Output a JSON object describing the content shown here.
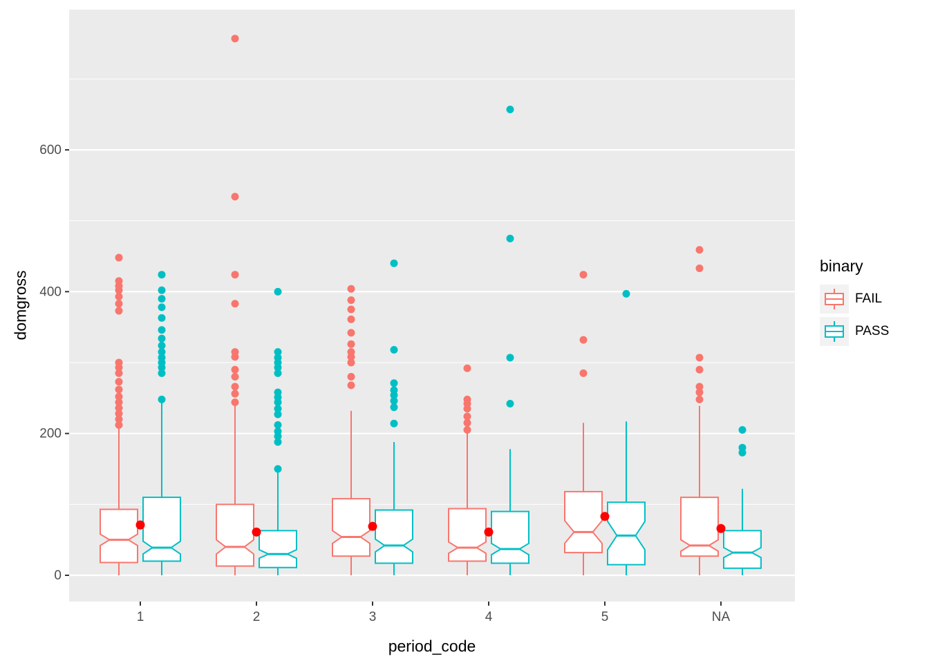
{
  "chart_data": {
    "type": "boxplot",
    "title": "",
    "xlabel": "period_code",
    "ylabel": "domgross",
    "categories": [
      "1",
      "2",
      "3",
      "4",
      "5",
      "NA"
    ],
    "y_major_ticks": [
      0,
      200,
      400,
      600
    ],
    "y_minor_ticks": [
      100,
      300,
      500,
      700
    ],
    "ylim": [
      -37,
      798
    ],
    "grid": true,
    "legend": {
      "title": "binary",
      "position": "right",
      "entries": [
        {
          "label": "FAIL",
          "color": "#F8766D"
        },
        {
          "label": "PASS",
          "color": "#00BFC4"
        }
      ]
    },
    "colors": {
      "FAIL": "#F8766D",
      "PASS": "#00BFC4",
      "mean": "#FF0000",
      "panel_bg": "#EBEBEB",
      "grid": "#FFFFFF",
      "axis_text": "#4D4D4D",
      "axis_title": "#000000",
      "tick_mark": "#333333"
    },
    "means": {
      "x": [
        "1",
        "2",
        "3",
        "4",
        "5",
        "NA"
      ],
      "values": [
        71,
        61,
        69,
        61,
        83,
        66
      ]
    },
    "series": [
      {
        "name": "FAIL",
        "boxes": [
          {
            "category": "1",
            "whisker_low": 0,
            "q1": 18,
            "notch_low": 42,
            "median": 50,
            "notch_high": 58,
            "q3": 93,
            "whisker_high": 208,
            "outliers": [
              212,
              220,
              228,
              236,
              244,
              252,
              262,
              273,
              285,
              293,
              300,
              373,
              383,
              393,
              402,
              408,
              415,
              448
            ]
          },
          {
            "category": "2",
            "whisker_low": 0,
            "q1": 13,
            "notch_low": 30,
            "median": 40,
            "notch_high": 50,
            "q3": 100,
            "whisker_high": 239,
            "outliers": [
              244,
              256,
              266,
              280,
              290,
              308,
              315,
              383,
              424,
              534,
              757
            ]
          },
          {
            "category": "3",
            "whisker_low": 0,
            "q1": 27,
            "notch_low": 45,
            "median": 54,
            "notch_high": 63,
            "q3": 108,
            "whisker_high": 232,
            "outliers": [
              268,
              280,
              300,
              308,
              315,
              326,
              342,
              361,
              375,
              388,
              404
            ]
          },
          {
            "category": "4",
            "whisker_low": 0,
            "q1": 20,
            "notch_low": 31,
            "median": 39,
            "notch_high": 47,
            "q3": 94,
            "whisker_high": 200,
            "outliers": [
              205,
              215,
              224,
              235,
              242,
              248,
              292
            ]
          },
          {
            "category": "5",
            "whisker_low": 0,
            "q1": 32,
            "notch_low": 45,
            "median": 61,
            "notch_high": 77,
            "q3": 118,
            "whisker_high": 215,
            "outliers": [
              285,
              332,
              424
            ]
          },
          {
            "category": "NA",
            "whisker_low": 0,
            "q1": 27,
            "notch_low": 34,
            "median": 42,
            "notch_high": 50,
            "q3": 110,
            "whisker_high": 239,
            "outliers": [
              248,
              258,
              266,
              290,
              307,
              433,
              459
            ]
          }
        ]
      },
      {
        "name": "PASS",
        "boxes": [
          {
            "category": "1",
            "whisker_low": 0,
            "q1": 20,
            "notch_low": 30,
            "median": 39,
            "notch_high": 48,
            "q3": 110,
            "whisker_high": 244,
            "outliers": [
              248,
              285,
              293,
              300,
              307,
              315,
              324,
              334,
              346,
              363,
              378,
              390,
              402,
              424
            ]
          },
          {
            "category": "2",
            "whisker_low": 0,
            "q1": 11,
            "notch_low": 24,
            "median": 30,
            "notch_high": 36,
            "q3": 63,
            "whisker_high": 146,
            "outliers": [
              150,
              188,
              196,
              203,
              212,
              227,
              235,
              244,
              251,
              258,
              285,
              293,
              300,
              307,
              315,
              400
            ]
          },
          {
            "category": "3",
            "whisker_low": 0,
            "q1": 17,
            "notch_low": 33,
            "median": 42,
            "notch_high": 51,
            "q3": 92,
            "whisker_high": 188,
            "outliers": [
              214,
              237,
              246,
              254,
              261,
              271,
              318,
              440
            ]
          },
          {
            "category": "4",
            "whisker_low": 0,
            "q1": 17,
            "notch_low": 29,
            "median": 37,
            "notch_high": 45,
            "q3": 90,
            "whisker_high": 178,
            "outliers": [
              242,
              307,
              475,
              657
            ]
          },
          {
            "category": "5",
            "whisker_low": 0,
            "q1": 15,
            "notch_low": 36,
            "median": 56,
            "notch_high": 76,
            "q3": 103,
            "whisker_high": 217,
            "outliers": [
              397
            ]
          },
          {
            "category": "NA",
            "whisker_low": 0,
            "q1": 10,
            "notch_low": 25,
            "median": 32,
            "notch_high": 39,
            "q3": 63,
            "whisker_high": 122,
            "outliers": [
              173,
              180,
              205
            ]
          }
        ]
      }
    ]
  }
}
